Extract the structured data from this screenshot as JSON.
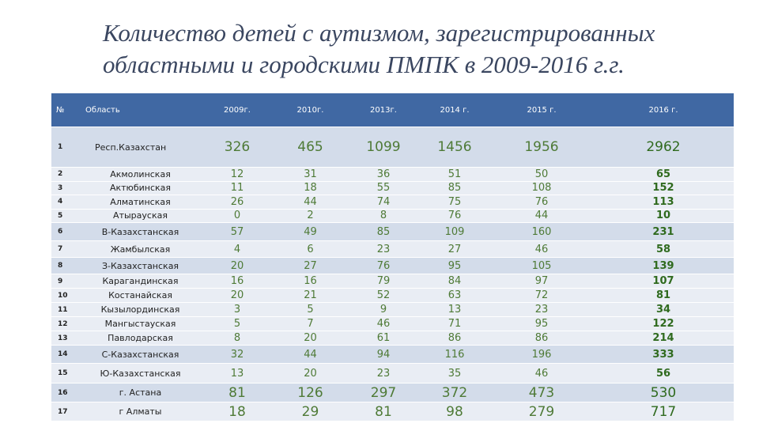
{
  "title": "Количество детей с аутизмом, зарегистрированных областными и городскими ПМПК в 2009-2016 г.г.",
  "table": {
    "header": [
      "№",
      "Область",
      "2009г.",
      "2010г.",
      "2013г.",
      "2014 г.",
      "2015 г.",
      "2016 г."
    ],
    "rows": [
      [
        "1",
        "Респ.Казахстан",
        "326",
        "465",
        "1099",
        "1456",
        "1956",
        "2962"
      ],
      [
        "2",
        "Акмолинская",
        "12",
        "31",
        "36",
        "51",
        "50",
        "65"
      ],
      [
        "3",
        "Актюбинская",
        "11",
        "18",
        "55",
        "85",
        "108",
        "152"
      ],
      [
        "4",
        "Алматинская",
        "26",
        "44",
        "74",
        "75",
        "76",
        "113"
      ],
      [
        "5",
        "Атырауская",
        "0",
        "2",
        "8",
        "76",
        "44",
        "10"
      ],
      [
        "6",
        "В-Казахстанская",
        "57",
        "49",
        "85",
        "109",
        "160",
        "231"
      ],
      [
        "7",
        "Жамбылская",
        "4",
        "6",
        "23",
        "27",
        "46",
        "58"
      ],
      [
        "8",
        "З-Казахстанская",
        "20",
        "27",
        "76",
        "95",
        "105",
        "139"
      ],
      [
        "9",
        "Карагандинская",
        "16",
        "16",
        "79",
        "84",
        "97",
        "107"
      ],
      [
        "10",
        "Костанайская",
        "20",
        "21",
        "52",
        "63",
        "72",
        "81"
      ],
      [
        "11",
        "Кызылординская",
        "3",
        "5",
        "9",
        "13",
        "23",
        "34"
      ],
      [
        "12",
        "Мангыстауская",
        "5",
        "7",
        "46",
        "71",
        "95",
        "122"
      ],
      [
        "13",
        "Павлодарская",
        "8",
        "20",
        "61",
        "86",
        "86",
        "214"
      ],
      [
        "14",
        "С-Казахстанская",
        "32",
        "44",
        "94",
        "116",
        "196",
        "333"
      ],
      [
        "15",
        "Ю-Казахстанская",
        "13",
        "20",
        "23",
        "35",
        "46",
        "56"
      ],
      [
        "16",
        "г. Астана",
        "81",
        "126",
        "297",
        "372",
        "473",
        "530"
      ],
      [
        "17",
        "г Алматы",
        "18",
        "29",
        "81",
        "98",
        "279",
        "717"
      ]
    ]
  }
}
